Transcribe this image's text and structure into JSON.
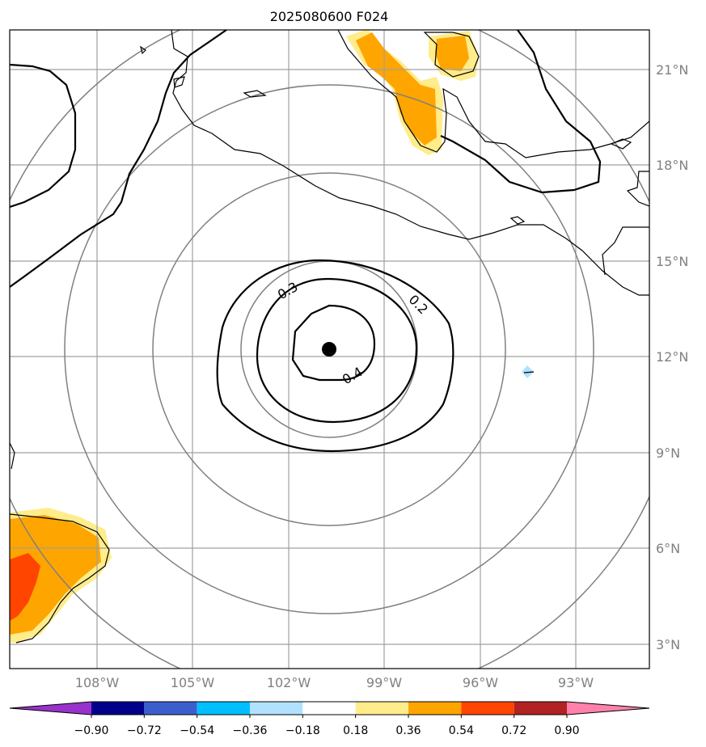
{
  "title": "2025080600 F024",
  "map": {
    "lat_labels": [
      "21°N",
      "18°N",
      "15°N",
      "12°N",
      "9°N",
      "6°N",
      "3°N"
    ],
    "lon_labels": [
      "108°W",
      "105°W",
      "102°W",
      "99°W",
      "96°W",
      "93°W"
    ],
    "center_marker": "storm-center",
    "contour_labels": [
      "0.3",
      "0.2",
      "0.4"
    ]
  },
  "colorbar": {
    "ticks": [
      "−0.90",
      "−0.72",
      "−0.54",
      "−0.36",
      "−0.18",
      "0.18",
      "0.36",
      "0.54",
      "0.72",
      "0.90"
    ],
    "colors": [
      "#9932cc",
      "#00008b",
      "#3a5fcd",
      "#00bfff",
      "#b0e2ff",
      "#ffffff",
      "#ffec8b",
      "#ffa500",
      "#ff4500",
      "#b22222",
      "#ff82ab"
    ]
  }
}
